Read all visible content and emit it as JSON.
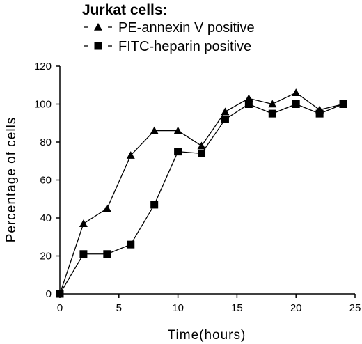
{
  "chart_data": {
    "type": "line",
    "title": "",
    "legend_title": "Jurkat cells:",
    "legend_placement": "top-left",
    "xlabel": "Time(hours)",
    "ylabel": "Percentage of cells",
    "xlim": [
      0,
      25
    ],
    "ylim": [
      0,
      120
    ],
    "xticks": [
      0,
      5,
      10,
      15,
      20,
      25
    ],
    "yticks": [
      0,
      20,
      40,
      60,
      80,
      100,
      120
    ],
    "grid": false,
    "series": [
      {
        "name": "PE-annexin V positive",
        "marker": "triangle",
        "color": "#000000",
        "x": [
          0,
          2,
          4,
          6,
          8,
          10,
          12,
          14,
          16,
          18,
          20,
          22,
          24
        ],
        "y": [
          0,
          37,
          45,
          73,
          86,
          86,
          78,
          96,
          103,
          100,
          106,
          97,
          100
        ]
      },
      {
        "name": "FITC-heparin positive",
        "marker": "square",
        "color": "#000000",
        "x": [
          0,
          2,
          4,
          6,
          8,
          10,
          12,
          14,
          16,
          18,
          20,
          22,
          24
        ],
        "y": [
          0,
          21,
          21,
          26,
          47,
          75,
          74,
          92,
          100,
          95,
          100,
          95,
          100
        ]
      }
    ]
  }
}
